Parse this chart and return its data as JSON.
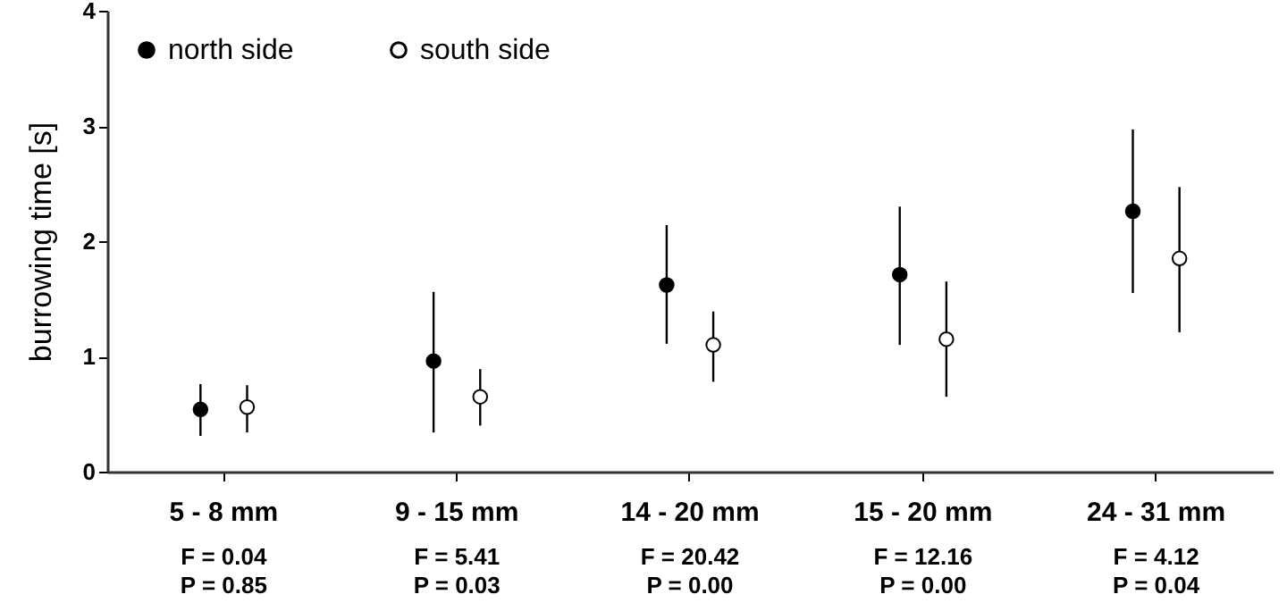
{
  "chart_data": {
    "type": "scatter",
    "ylabel": "burrowing time [s]",
    "categories": [
      "5 - 8 mm",
      "9 - 15 mm",
      "14 - 20 mm",
      "15 - 20 mm",
      "24 - 31 mm"
    ],
    "series": [
      {
        "name": "north side",
        "color": "#000000",
        "values": [
          0.54,
          0.96,
          1.62,
          1.71,
          2.26
        ],
        "errors": [
          [
            0.31,
            0.76
          ],
          [
            0.34,
            1.56
          ],
          [
            1.11,
            2.14
          ],
          [
            1.1,
            2.3
          ],
          [
            1.55,
            2.97
          ]
        ]
      },
      {
        "name": "south side",
        "color": "#ffffff",
        "values": [
          0.56,
          0.65,
          1.1,
          1.15,
          1.85
        ],
        "errors": [
          [
            0.34,
            0.75
          ],
          [
            0.4,
            0.89
          ],
          [
            0.78,
            1.39
          ],
          [
            0.65,
            1.65
          ],
          [
            1.21,
            2.47
          ]
        ]
      }
    ],
    "annotations": [
      "F = 0.04\nP = 0.85",
      "F = 5.41\nP = 0.03",
      "F = 20.42\nP = 0.00",
      "F = 12.16\nP = 0.00",
      "F = 4.12\nP = 0.04"
    ],
    "ylim": [
      0,
      4
    ],
    "yticks": [
      0,
      1,
      2,
      3,
      4
    ],
    "grid": false,
    "legend": "top left",
    "marker": "circle"
  }
}
